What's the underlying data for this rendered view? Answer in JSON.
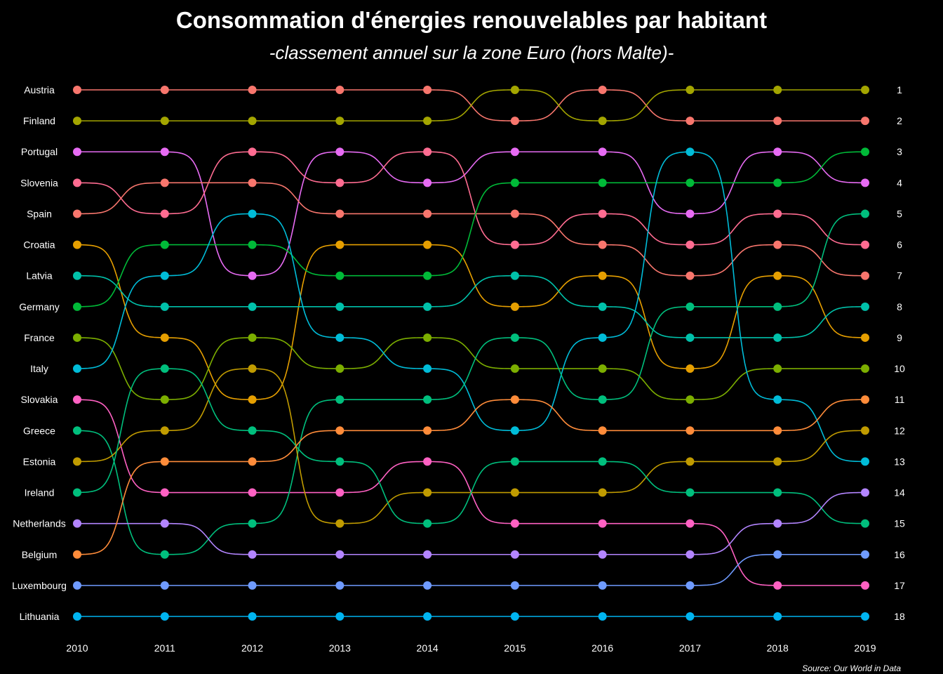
{
  "title": "Consommation d'énergies renouvelables par habitant",
  "subtitle": "-classement annuel sur la zone Euro (hors Malte)-",
  "source": "Source: Our World in Data",
  "chart_data": {
    "type": "line",
    "x": [
      2010,
      2011,
      2012,
      2013,
      2014,
      2015,
      2016,
      2017,
      2018,
      2019
    ],
    "ranks": [
      1,
      2,
      3,
      4,
      5,
      6,
      7,
      8,
      9,
      10,
      11,
      12,
      13,
      14,
      15,
      16,
      17,
      18
    ],
    "series": [
      {
        "name": "Austria",
        "color": "#F8766D",
        "values": [
          1,
          1,
          1,
          1,
          1,
          2,
          1,
          2,
          2,
          2
        ]
      },
      {
        "name": "Finland",
        "color": "#A3A500",
        "values": [
          2,
          2,
          2,
          2,
          2,
          1,
          2,
          1,
          1,
          1
        ]
      },
      {
        "name": "Portugal",
        "color": "#E76BF3",
        "values": [
          3,
          3,
          7,
          3,
          4,
          3,
          3,
          5,
          3,
          4
        ]
      },
      {
        "name": "Slovenia",
        "color": "#FF6C91",
        "values": [
          4,
          5,
          3,
          4,
          3,
          6,
          5,
          6,
          5,
          6
        ]
      },
      {
        "name": "Spain",
        "color": "#F8766D",
        "values": [
          5,
          4,
          4,
          5,
          5,
          5,
          6,
          7,
          6,
          7
        ]
      },
      {
        "name": "Croatia",
        "color": "#E69F00",
        "values": [
          6,
          9,
          11,
          6,
          6,
          8,
          7,
          10,
          7,
          9
        ]
      },
      {
        "name": "Latvia",
        "color": "#00C1AA",
        "values": [
          7,
          8,
          8,
          8,
          8,
          7,
          8,
          9,
          9,
          8
        ]
      },
      {
        "name": "Germany",
        "color": "#00BA38",
        "values": [
          8,
          6,
          6,
          7,
          7,
          4,
          4,
          4,
          4,
          3
        ]
      },
      {
        "name": "France",
        "color": "#7CAE00",
        "values": [
          9,
          11,
          9,
          10,
          9,
          10,
          10,
          11,
          10,
          10
        ]
      },
      {
        "name": "Italy",
        "color": "#00BCD8",
        "values": [
          10,
          7,
          5,
          9,
          10,
          12,
          9,
          3,
          11,
          13
        ]
      },
      {
        "name": "Slovakia",
        "color": "#FF61C3",
        "values": [
          11,
          14,
          14,
          14,
          13,
          15,
          15,
          15,
          17,
          17
        ]
      },
      {
        "name": "Greece",
        "color": "#00BF7D",
        "values": [
          12,
          16,
          15,
          11,
          11,
          9,
          11,
          8,
          8,
          5
        ]
      },
      {
        "name": "Estonia",
        "color": "#C09B00",
        "values": [
          13,
          12,
          10,
          15,
          14,
          14,
          14,
          13,
          13,
          12
        ]
      },
      {
        "name": "Ireland",
        "color": "#00BF7D",
        "values": [
          14,
          10,
          12,
          13,
          15,
          13,
          13,
          14,
          14,
          15
        ]
      },
      {
        "name": "Netherlands",
        "color": "#B385FF",
        "values": [
          15,
          15,
          16,
          16,
          16,
          16,
          16,
          16,
          15,
          14
        ]
      },
      {
        "name": "Belgium",
        "color": "#FF8C3A",
        "values": [
          16,
          13,
          13,
          12,
          12,
          11,
          12,
          12,
          12,
          11
        ]
      },
      {
        "name": "Luxembourg",
        "color": "#6F9BFF",
        "values": [
          17,
          17,
          17,
          17,
          17,
          17,
          17,
          17,
          16,
          16
        ]
      },
      {
        "name": "Lithuania",
        "color": "#00B4F0",
        "values": [
          18,
          18,
          18,
          18,
          18,
          18,
          18,
          18,
          18,
          18
        ]
      }
    ]
  }
}
